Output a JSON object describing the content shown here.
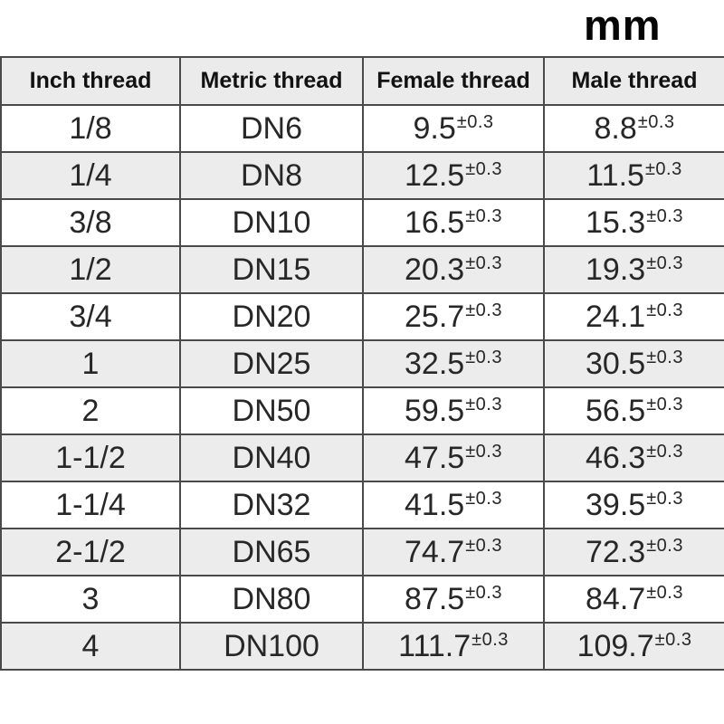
{
  "unit_label": "mm",
  "colors": {
    "header_bg": "#ebebeb",
    "alt_row_bg": "#ececec",
    "border": "#4a4a4a",
    "text": "#272727"
  },
  "chart_data": {
    "type": "table",
    "title": "Thread dimension table (mm)",
    "unit": "mm",
    "columns": [
      "Inch thread",
      "Metric thread",
      "Female thread",
      "Male thread"
    ],
    "tolerance": "±0.3",
    "rows": [
      {
        "inch": "1/8",
        "metric": "DN6",
        "female": "9.5",
        "male": "8.8"
      },
      {
        "inch": "1/4",
        "metric": "DN8",
        "female": "12.5",
        "male": "11.5"
      },
      {
        "inch": "3/8",
        "metric": "DN10",
        "female": "16.5",
        "male": "15.3"
      },
      {
        "inch": "1/2",
        "metric": "DN15",
        "female": "20.3",
        "male": "19.3"
      },
      {
        "inch": "3/4",
        "metric": "DN20",
        "female": "25.7",
        "male": "24.1"
      },
      {
        "inch": "1",
        "metric": "DN25",
        "female": "32.5",
        "male": "30.5"
      },
      {
        "inch": "2",
        "metric": "DN50",
        "female": "59.5",
        "male": "56.5"
      },
      {
        "inch": "1-1/2",
        "metric": "DN40",
        "female": "47.5",
        "male": "46.3"
      },
      {
        "inch": "1-1/4",
        "metric": "DN32",
        "female": "41.5",
        "male": "39.5"
      },
      {
        "inch": "2-1/2",
        "metric": "DN65",
        "female": "74.7",
        "male": "72.3"
      },
      {
        "inch": "3",
        "metric": "DN80",
        "female": "87.5",
        "male": "84.7"
      },
      {
        "inch": "4",
        "metric": "DN100",
        "female": "111.7",
        "male": "109.7"
      }
    ]
  }
}
